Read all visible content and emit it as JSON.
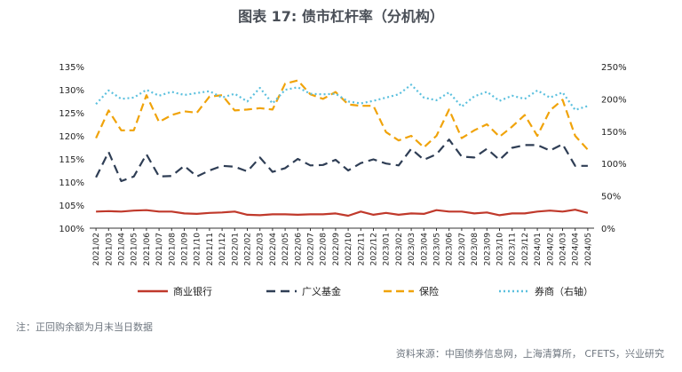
{
  "chart_data": {
    "type": "line",
    "title": "图表 17: 债市杠杆率（分机构）",
    "x": [
      "2021/02",
      "2021/03",
      "2021/04",
      "2021/05",
      "2021/06",
      "2021/07",
      "2021/08",
      "2021/09",
      "2021/10",
      "2021/11",
      "2021/12",
      "2022/01",
      "2022/02",
      "2022/03",
      "2022/04",
      "2022/05",
      "2022/06",
      "2022/07",
      "2022/08",
      "2022/09",
      "2022/10",
      "2022/11",
      "2022/12",
      "2023/01",
      "2023/02",
      "2023/03",
      "2023/04",
      "2023/05",
      "2023/06",
      "2023/07",
      "2023/08",
      "2023/09",
      "2023/10",
      "2023/11",
      "2023/12",
      "2024/01",
      "2024/02",
      "2024/03",
      "2024/04",
      "2024/05"
    ],
    "x_labels": [
      "2021/02",
      "2021/03",
      "2021/04",
      "2021/05",
      "2021/06",
      "2021/07",
      "2021/08",
      "2021/09",
      "2021/10",
      "2021/11",
      "2021/12",
      "2022/01",
      "2022/02",
      "2022/03",
      "2022/04",
      "2022/05",
      "2022/06",
      "2022/07",
      "2022/08",
      "2022/09",
      "2022/10",
      "2022/11",
      "2022/12",
      "2023/01",
      "2023/02",
      "2023/03",
      "2023/04",
      "2023/05",
      "2023/06",
      "2023/07",
      "2023/08",
      "2023/09",
      "2023/10",
      "2023/11",
      "2023/12",
      "2024/01",
      "2024/02",
      "2024/03",
      "2024/04",
      "2024/05"
    ],
    "left_axis": {
      "ylim": [
        100,
        135
      ],
      "ticks": [
        "100%",
        "105%",
        "110%",
        "115%",
        "120%",
        "125%",
        "130%",
        "135%"
      ]
    },
    "right_axis": {
      "ylim": [
        0,
        250
      ],
      "ticks": [
        "0%",
        "50%",
        "100%",
        "150%",
        "200%",
        "250%"
      ]
    },
    "series": [
      {
        "name": "商业银行",
        "axis": "left",
        "color": "#c0392b",
        "dash": "solid",
        "values": [
          103.6,
          103.7,
          103.6,
          103.8,
          103.9,
          103.6,
          103.6,
          103.2,
          103.1,
          103.3,
          103.4,
          103.6,
          102.9,
          102.8,
          103.0,
          103.0,
          102.9,
          103.0,
          103.0,
          103.2,
          102.7,
          103.6,
          102.9,
          103.3,
          102.9,
          103.2,
          103.1,
          103.9,
          103.6,
          103.6,
          103.2,
          103.4,
          102.8,
          103.2,
          103.2,
          103.6,
          103.8,
          103.6,
          104.0,
          103.3
        ]
      },
      {
        "name": "广义基金",
        "axis": "left",
        "color": "#2f3e55",
        "dash": "10,6",
        "values": [
          111.0,
          116.5,
          110.2,
          111.2,
          116.0,
          111.2,
          111.3,
          113.5,
          111.2,
          112.5,
          113.5,
          113.3,
          112.3,
          115.3,
          112.2,
          113.0,
          115.0,
          113.6,
          113.7,
          114.8,
          112.5,
          114.1,
          114.9,
          114.0,
          113.6,
          117.2,
          114.8,
          116.0,
          119.2,
          115.5,
          115.3,
          117.2,
          114.8,
          117.4,
          118.0,
          118.0,
          116.8,
          118.2,
          113.5,
          113.5
        ]
      },
      {
        "name": "保险",
        "axis": "left",
        "color": "#f0a30a",
        "dash": "9,5",
        "values": [
          119.5,
          125.5,
          121.2,
          121.2,
          128.8,
          123.0,
          124.5,
          125.3,
          125.0,
          128.5,
          128.8,
          125.5,
          125.7,
          126.0,
          125.7,
          131.3,
          132.0,
          129.0,
          128.0,
          129.5,
          126.8,
          126.5,
          126.5,
          120.8,
          119.0,
          120.0,
          117.5,
          120.0,
          125.7,
          119.5,
          121.2,
          122.5,
          119.8,
          122.0,
          124.5,
          120.0,
          125.5,
          127.8,
          120.0,
          117.0
        ]
      },
      {
        "name": "券商（右轴）",
        "axis": "right",
        "color": "#5bc0de",
        "dash": "2,3",
        "values": [
          192,
          213,
          200,
          202,
          214,
          205,
          211,
          206,
          209,
          212,
          202,
          208,
          196,
          217,
          193,
          214,
          218,
          208,
          207,
          208,
          196,
          193,
          197,
          202,
          207,
          222,
          202,
          198,
          210,
          188,
          204,
          211,
          197,
          205,
          200,
          213,
          202,
          210,
          183,
          189
        ]
      }
    ],
    "legend": {
      "position": "bottom"
    },
    "grid": false
  },
  "note": "注：正回购余额为月末当日数据",
  "source": "资料来源：中国债券信息网，上海清算所，  CFETS，兴业研究"
}
